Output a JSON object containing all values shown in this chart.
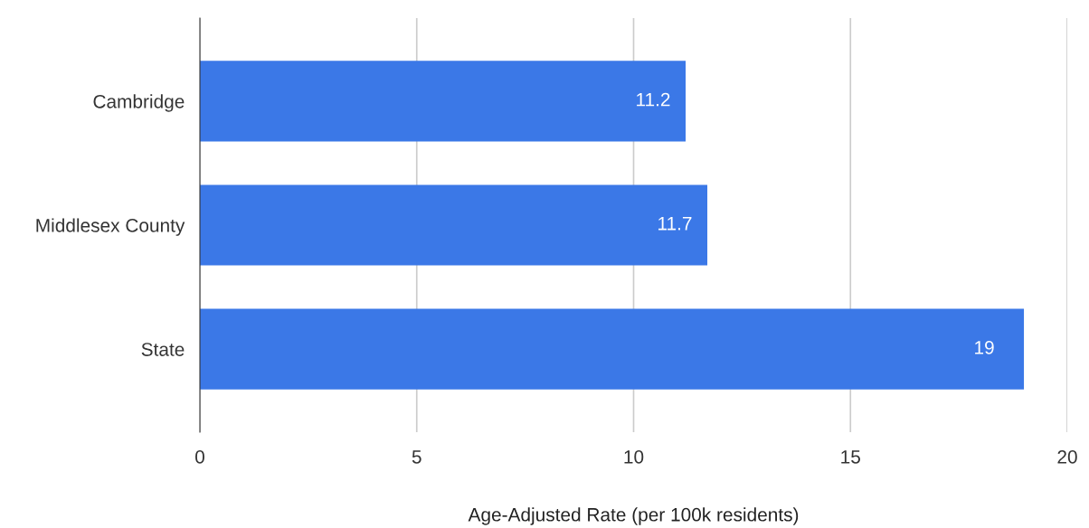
{
  "chart_data": {
    "type": "bar",
    "orientation": "horizontal",
    "categories": [
      "Cambridge",
      "Middlesex County",
      "State"
    ],
    "values": [
      11.2,
      11.7,
      19
    ],
    "color": "#3b78e7",
    "xlim": [
      0,
      20
    ],
    "xticks": [
      0,
      5,
      10,
      15,
      20
    ],
    "xlabel": "Age-Adjusted Rate (per 100k residents)",
    "data_labels": true,
    "grid": "x",
    "legend": false
  }
}
